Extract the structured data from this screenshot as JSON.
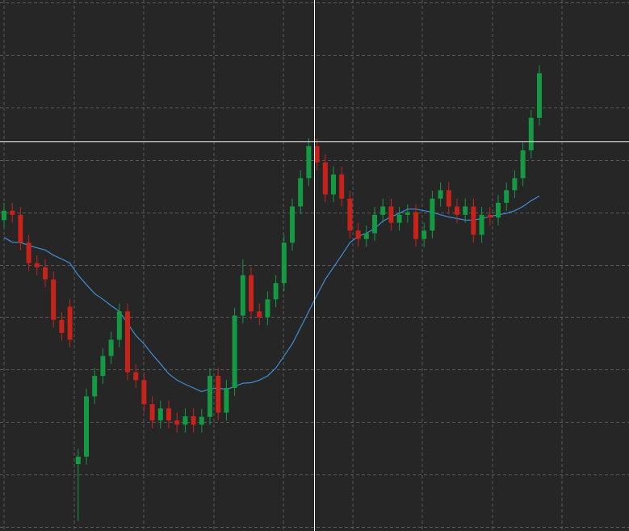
{
  "chart_data": {
    "type": "candlestick",
    "ylim": [
      0,
      10
    ],
    "yticks": [
      0,
      1,
      2,
      3,
      4,
      5,
      6,
      7,
      8,
      9,
      10
    ],
    "grid": true,
    "up_color": "#139a43",
    "down_color": "#c8231b",
    "open": [
      5.85,
      6.03,
      5.95,
      5.42,
      5.03,
      4.95,
      4.72,
      3.95,
      4.2,
      1.2,
      1.34,
      2.49,
      2.88,
      3.26,
      3.57,
      4.11,
      2.95,
      2.8,
      2.34,
      2.03,
      2.26,
      2.03,
      1.95,
      2.11,
      1.95,
      2.1,
      2.88,
      2.18,
      2.65,
      4.03,
      4.8,
      4.11,
      4.0,
      4.34,
      4.65,
      5.42,
      6.11,
      6.65,
      7.26,
      6.95,
      6.34,
      6.72,
      6.26,
      5.65,
      5.49,
      5.6,
      5.95,
      6.11,
      5.8,
      5.95,
      6.0,
      5.49,
      5.65,
      6.26,
      6.42,
      6.11,
      5.95,
      6.11,
      5.57,
      5.95,
      5.9,
      6.18,
      6.42,
      6.65,
      7.18,
      7.8
    ],
    "high": [
      6.18,
      6.18,
      6.1,
      5.57,
      5.18,
      5.1,
      4.87,
      4.1,
      4.35,
      1.49,
      2.64,
      3.03,
      3.41,
      3.72,
      4.26,
      4.26,
      3.1,
      2.95,
      2.49,
      2.41,
      2.41,
      2.18,
      2.26,
      2.26,
      2.25,
      3.03,
      3.03,
      2.8,
      4.18,
      5.1,
      4.95,
      4.26,
      4.49,
      4.8,
      5.57,
      6.26,
      6.8,
      7.41,
      7.41,
      7.1,
      6.87,
      6.87,
      6.41,
      5.8,
      5.75,
      6.1,
      6.26,
      6.26,
      6.1,
      6.15,
      6.15,
      5.8,
      6.41,
      6.57,
      6.57,
      6.26,
      6.26,
      6.26,
      6.1,
      6.1,
      6.33,
      6.57,
      6.8,
      7.33,
      7.95,
      8.8
    ],
    "low": [
      5.7,
      5.8,
      5.27,
      4.88,
      4.8,
      4.57,
      3.8,
      3.55,
      3.42,
      0.11,
      1.19,
      2.34,
      2.73,
      3.11,
      3.42,
      2.8,
      2.65,
      2.19,
      1.88,
      1.88,
      1.88,
      1.8,
      1.8,
      1.8,
      1.8,
      1.95,
      2.03,
      2.03,
      2.5,
      3.88,
      3.96,
      3.85,
      3.85,
      4.19,
      4.5,
      5.27,
      5.96,
      6.5,
      6.8,
      6.19,
      6.19,
      6.11,
      5.5,
      5.34,
      5.34,
      5.45,
      5.8,
      5.65,
      5.65,
      5.8,
      5.34,
      5.34,
      5.5,
      6.11,
      5.96,
      5.8,
      5.8,
      5.42,
      5.42,
      5.75,
      5.75,
      6.03,
      6.27,
      6.5,
      7.03,
      7.65
    ],
    "close": [
      6.03,
      5.95,
      5.42,
      5.03,
      4.95,
      4.72,
      3.95,
      3.7,
      3.57,
      1.34,
      2.49,
      2.88,
      3.26,
      3.57,
      4.11,
      2.95,
      2.8,
      2.34,
      2.03,
      2.26,
      2.03,
      1.95,
      2.11,
      1.95,
      2.1,
      2.88,
      2.18,
      2.65,
      4.03,
      4.8,
      4.11,
      4.0,
      4.34,
      4.65,
      5.42,
      6.11,
      6.65,
      7.26,
      6.95,
      6.34,
      6.72,
      6.26,
      5.65,
      5.49,
      5.6,
      5.95,
      6.11,
      5.8,
      5.95,
      6.0,
      5.49,
      5.65,
      6.26,
      6.42,
      6.11,
      5.95,
      6.11,
      5.57,
      5.95,
      5.9,
      6.18,
      6.42,
      6.65,
      7.18,
      7.8,
      8.65
    ],
    "series": [
      {
        "color": "#3d8fd8",
        "values": [
          5.52,
          5.43,
          5.42,
          5.37,
          5.32,
          5.28,
          5.18,
          5.11,
          5.03,
          4.8,
          4.62,
          4.45,
          4.34,
          4.22,
          4.11,
          3.88,
          3.65,
          3.49,
          3.29,
          3.11,
          2.92,
          2.8,
          2.72,
          2.65,
          2.58,
          2.63,
          2.65,
          2.62,
          2.68,
          2.74,
          2.75,
          2.8,
          2.88,
          3.03,
          3.26,
          3.49,
          3.8,
          4.11,
          4.42,
          4.72,
          4.95,
          5.18,
          5.42,
          5.54,
          5.6,
          5.69,
          5.83,
          5.91,
          5.98,
          6.06,
          6.06,
          6.03,
          6.0,
          5.95,
          5.91,
          5.88,
          5.85,
          5.85,
          5.88,
          5.92,
          5.95,
          5.98,
          6.03,
          6.11,
          6.22,
          6.31
        ]
      }
    ]
  }
}
